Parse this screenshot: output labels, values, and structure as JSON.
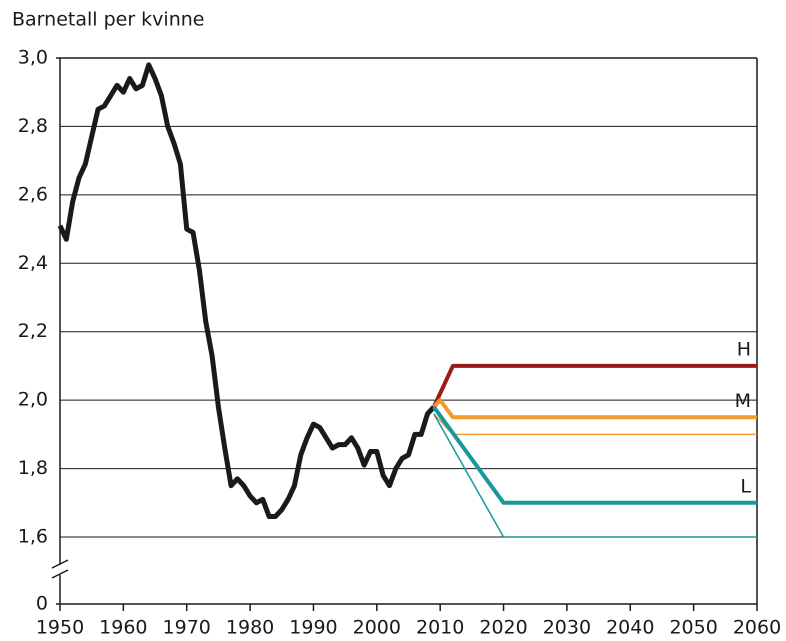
{
  "chart_data": {
    "type": "line",
    "title": "Barnetall per kvinne",
    "xlim": [
      1950,
      2060
    ],
    "xticks": [
      1950,
      1960,
      1970,
      1980,
      1990,
      2000,
      2010,
      2020,
      2030,
      2040,
      2050,
      2060
    ],
    "ylim": [
      1.6,
      3.0
    ],
    "y_break": true,
    "yticks": [
      0,
      {
        "value": 1.6,
        "label": "1,6"
      },
      {
        "value": 1.8,
        "label": "1,8"
      },
      {
        "value": 2.0,
        "label": "2,0"
      },
      {
        "value": 2.2,
        "label": "2,2"
      },
      {
        "value": 2.4,
        "label": "2,4"
      },
      {
        "value": 2.6,
        "label": "2,6"
      },
      {
        "value": 2.8,
        "label": "2,8"
      },
      {
        "value": 3.0,
        "label": "3,0"
      }
    ],
    "grid": true,
    "series": [
      {
        "color": "#1a1a1a",
        "width": 5,
        "x": [
          1950,
          1951,
          1952,
          1953,
          1954,
          1955,
          1956,
          1957,
          1958,
          1959,
          1960,
          1961,
          1962,
          1963,
          1964,
          1965,
          1966,
          1967,
          1968,
          1969,
          1970,
          1971,
          1972,
          1973,
          1974,
          1975,
          1976,
          1977,
          1978,
          1979,
          1980,
          1981,
          1982,
          1983,
          1984,
          1985,
          1986,
          1987,
          1988,
          1989,
          1990,
          1991,
          1992,
          1993,
          1994,
          1995,
          1996,
          1997,
          1998,
          1999,
          2000,
          2001,
          2002,
          2003,
          2004,
          2005,
          2006,
          2007,
          2008,
          2009
        ],
        "values": [
          2.51,
          2.47,
          2.58,
          2.65,
          2.69,
          2.77,
          2.85,
          2.86,
          2.89,
          2.92,
          2.9,
          2.94,
          2.91,
          2.92,
          2.98,
          2.94,
          2.89,
          2.8,
          2.75,
          2.69,
          2.5,
          2.49,
          2.38,
          2.23,
          2.13,
          1.98,
          1.86,
          1.75,
          1.77,
          1.75,
          1.72,
          1.7,
          1.71,
          1.66,
          1.66,
          1.68,
          1.71,
          1.75,
          1.84,
          1.89,
          1.93,
          1.92,
          1.89,
          1.86,
          1.87,
          1.87,
          1.89,
          1.86,
          1.81,
          1.85,
          1.85,
          1.78,
          1.75,
          1.8,
          1.83,
          1.84,
          1.9,
          1.9,
          1.96,
          1.98
        ]
      },
      {
        "name": "H",
        "color": "#9b1b1b",
        "width": 4,
        "x": [
          2009,
          2012,
          2060
        ],
        "values": [
          1.98,
          2.1,
          2.1
        ]
      },
      {
        "name": "M",
        "color": "#f29a2e",
        "width": 4,
        "x": [
          2009,
          2010,
          2012,
          2060
        ],
        "values": [
          1.98,
          2.0,
          1.95,
          1.95
        ]
      },
      {
        "color": "#f29a2e",
        "width": 1.5,
        "x": [
          2009,
          2012,
          2060
        ],
        "values": [
          1.96,
          1.9,
          1.9
        ]
      },
      {
        "name": "L",
        "color": "#16999a",
        "width": 4,
        "x": [
          2009,
          2020,
          2060
        ],
        "values": [
          1.98,
          1.7,
          1.7
        ]
      },
      {
        "color": "#16999a",
        "width": 1.5,
        "x": [
          2009,
          2020,
          2060
        ],
        "values": [
          1.96,
          1.6,
          1.6
        ]
      }
    ]
  }
}
